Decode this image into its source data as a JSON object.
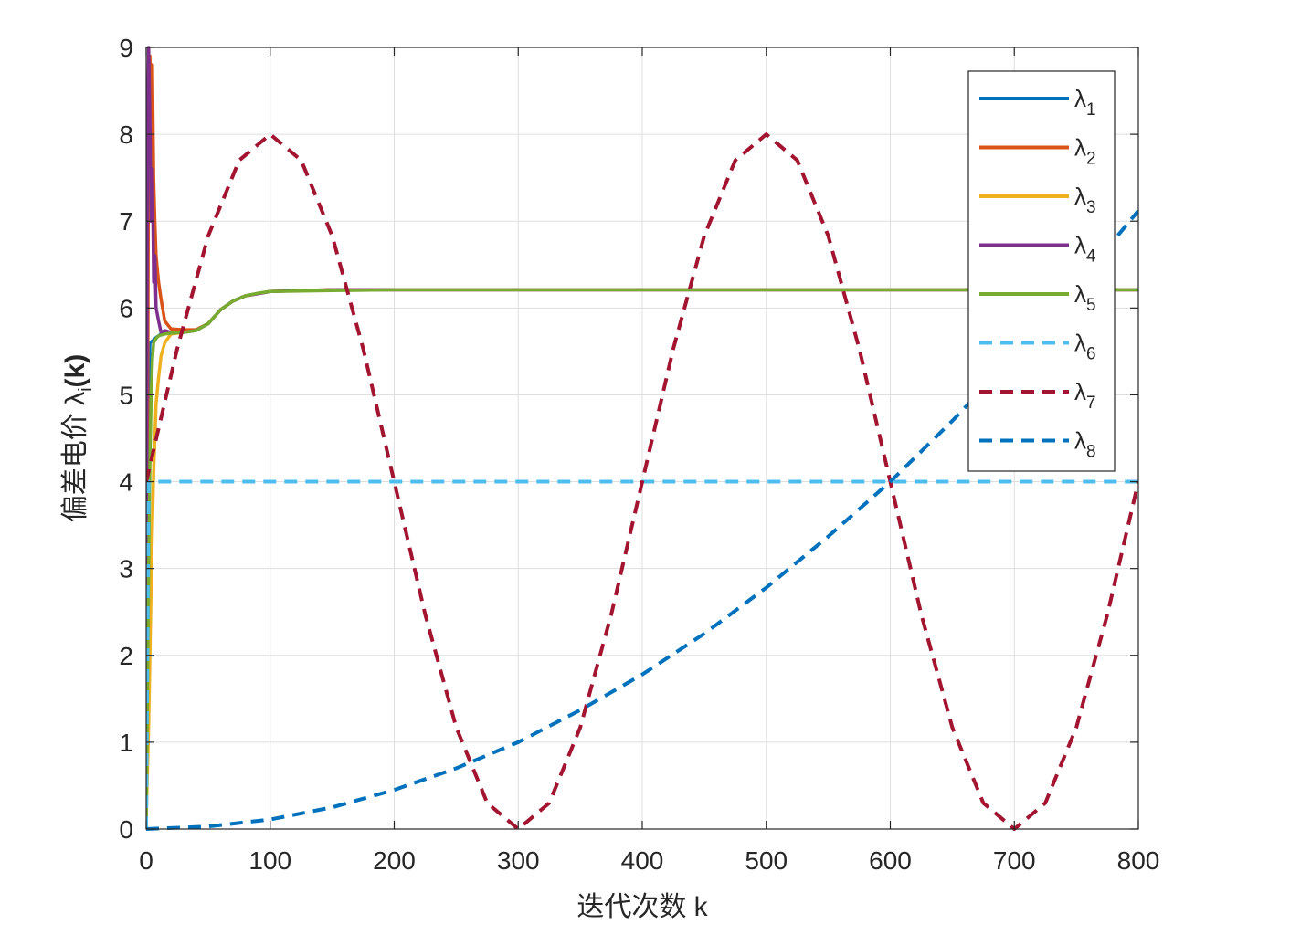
{
  "chart_data": {
    "type": "line",
    "title": "",
    "xlabel": "迭代次数 k",
    "ylabel_main": "偏差电价 λ",
    "ylabel_sub": "i",
    "ylabel_tail": "(k)",
    "xlim": [
      0,
      800
    ],
    "ylim": [
      0,
      9
    ],
    "xticks": [
      0,
      100,
      200,
      300,
      400,
      500,
      600,
      700,
      800
    ],
    "yticks": [
      0,
      1,
      2,
      3,
      4,
      5,
      6,
      7,
      8,
      9
    ],
    "grid": true,
    "legend_position": "top-right",
    "series": [
      {
        "name": "λ",
        "sub": "1",
        "color": "#0072BD",
        "dash": "solid",
        "x": [
          0,
          1,
          2,
          3,
          5,
          8,
          12,
          20,
          30,
          40,
          50,
          60,
          70,
          80,
          100,
          120,
          150,
          200,
          300,
          400,
          500,
          600,
          700,
          800
        ],
        "y": [
          0.2,
          3.0,
          5.0,
          5.6,
          5.62,
          5.66,
          5.7,
          5.72,
          5.72,
          5.74,
          5.82,
          5.98,
          6.08,
          6.14,
          6.19,
          6.2,
          6.21,
          6.21,
          6.21,
          6.21,
          6.21,
          6.21,
          6.21,
          6.21
        ]
      },
      {
        "name": "λ",
        "sub": "2",
        "color": "#D95319",
        "dash": "solid",
        "x": [
          0,
          1,
          2,
          3,
          4,
          5,
          6,
          7,
          8,
          10,
          12,
          15,
          20,
          30,
          40,
          50,
          60,
          70,
          80,
          100,
          120,
          150,
          200,
          300,
          400,
          500,
          600,
          700,
          800
        ],
        "y": [
          0.3,
          4.0,
          8.3,
          8.9,
          8.2,
          8.8,
          7.5,
          7.0,
          6.6,
          6.3,
          6.1,
          5.85,
          5.76,
          5.75,
          5.75,
          5.82,
          5.98,
          6.08,
          6.14,
          6.19,
          6.2,
          6.21,
          6.21,
          6.21,
          6.21,
          6.21,
          6.21,
          6.21,
          6.21
        ]
      },
      {
        "name": "λ",
        "sub": "3",
        "color": "#EDB120",
        "dash": "solid",
        "x": [
          0,
          2,
          3,
          4,
          5,
          6,
          7,
          8,
          10,
          12,
          15,
          20,
          30,
          40,
          50,
          60,
          70,
          80,
          100,
          150,
          200,
          300,
          400,
          500,
          600,
          700,
          800
        ],
        "y": [
          0.1,
          1.2,
          2.0,
          2.8,
          3.5,
          4.1,
          4.5,
          4.9,
          5.2,
          5.45,
          5.6,
          5.7,
          5.72,
          5.74,
          5.82,
          5.98,
          6.08,
          6.14,
          6.19,
          6.21,
          6.21,
          6.21,
          6.21,
          6.21,
          6.21,
          6.21,
          6.21
        ]
      },
      {
        "name": "λ",
        "sub": "4",
        "color": "#7E2F8E",
        "dash": "solid",
        "x": [
          0,
          1,
          2,
          3,
          4,
          5,
          6,
          7,
          8,
          10,
          12,
          15,
          20,
          30,
          40,
          50,
          60,
          70,
          80,
          100,
          150,
          200,
          300,
          400,
          500,
          600,
          700,
          800
        ],
        "y": [
          0.5,
          8.0,
          9.0,
          8.2,
          7.0,
          7.6,
          6.3,
          6.6,
          6.0,
          5.85,
          5.72,
          5.74,
          5.72,
          5.72,
          5.74,
          5.82,
          5.98,
          6.08,
          6.14,
          6.19,
          6.21,
          6.21,
          6.21,
          6.21,
          6.21,
          6.21,
          6.21,
          6.21
        ]
      },
      {
        "name": "λ",
        "sub": "5",
        "color": "#77AC30",
        "dash": "solid",
        "x": [
          0,
          1,
          2,
          3,
          4,
          5,
          6,
          8,
          10,
          15,
          20,
          30,
          40,
          50,
          60,
          70,
          80,
          90,
          100,
          150,
          200,
          300,
          400,
          500,
          600,
          700,
          800
        ],
        "y": [
          0.0,
          1.5,
          3.0,
          4.2,
          5.0,
          5.4,
          5.6,
          5.65,
          5.68,
          5.7,
          5.71,
          5.72,
          5.74,
          5.82,
          5.98,
          6.08,
          6.14,
          6.17,
          6.19,
          6.2,
          6.21,
          6.21,
          6.21,
          6.21,
          6.21,
          6.21,
          6.21
        ]
      },
      {
        "name": "λ",
        "sub": "6",
        "color": "#4DBEEE",
        "dash": "dashed",
        "x": [
          0,
          1,
          2,
          800
        ],
        "y": [
          0.0,
          2.0,
          4.0,
          4.0
        ]
      },
      {
        "name": "λ",
        "sub": "7",
        "color": "#A2142F",
        "dash": "dashed",
        "x": [
          0,
          25,
          50,
          75,
          100,
          125,
          150,
          175,
          200,
          225,
          250,
          275,
          300,
          325,
          350,
          375,
          400,
          425,
          450,
          475,
          500,
          525,
          550,
          575,
          600,
          625,
          650,
          675,
          700,
          725,
          750,
          775,
          800
        ],
        "y": [
          4.0,
          5.53,
          6.83,
          7.7,
          8.0,
          7.7,
          6.83,
          5.53,
          4.0,
          2.47,
          1.17,
          0.3,
          0.0,
          0.3,
          1.17,
          2.47,
          4.0,
          5.53,
          6.83,
          7.7,
          8.0,
          7.7,
          6.83,
          5.53,
          4.0,
          2.47,
          1.17,
          0.3,
          0.0,
          0.3,
          1.17,
          2.47,
          4.0
        ]
      },
      {
        "name": "λ",
        "sub": "8",
        "color": "#0072BD",
        "dash": "dashed",
        "x": [
          0,
          50,
          100,
          150,
          200,
          250,
          300,
          350,
          400,
          450,
          500,
          550,
          600,
          650,
          700,
          750,
          800
        ],
        "y": [
          0.0,
          0.03,
          0.11,
          0.25,
          0.45,
          0.7,
          1.0,
          1.37,
          1.78,
          2.25,
          2.78,
          3.37,
          4.0,
          4.7,
          5.45,
          6.26,
          7.12
        ]
      }
    ]
  }
}
